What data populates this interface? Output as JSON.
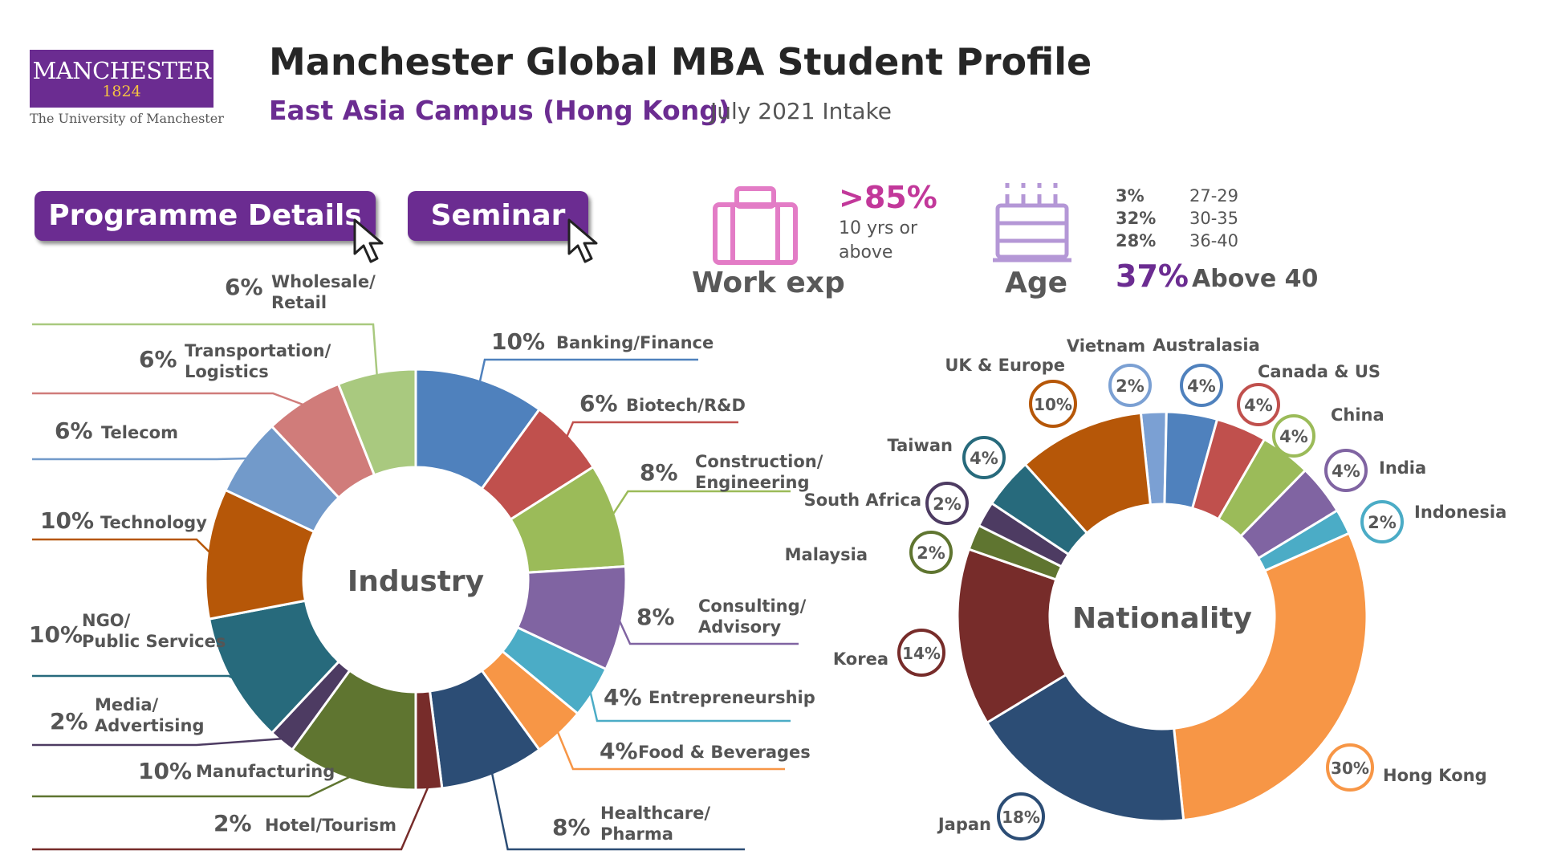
{
  "logo": {
    "word": "MANCHESTER",
    "year": "1824",
    "subtext": "The University of Manchester"
  },
  "header": {
    "title": "Manchester Global MBA Student Profile",
    "subtitle": "East Asia Campus (Hong Kong)",
    "intake": "July 2021 Intake"
  },
  "buttons": {
    "programme": "Programme Details",
    "seminar": "Seminar"
  },
  "work_exp": {
    "value": ">85%",
    "desc_line1": "10 yrs or",
    "desc_line2": "above",
    "label": "Work exp"
  },
  "age": {
    "label": "Age",
    "rows": [
      {
        "pct": "3%",
        "range": "27-29"
      },
      {
        "pct": "32%",
        "range": "30-35"
      },
      {
        "pct": "28%",
        "range": "36-40"
      }
    ],
    "highlight_pct": "37%",
    "highlight_label": "Above 40"
  },
  "colors": {
    "brand_purple": "#6b2c91",
    "accent_pink": "#c2389a",
    "logo_gold": "#f5c242"
  },
  "chart_data": [
    {
      "type": "pie",
      "title": "Industry",
      "categories": [
        "Banking/Finance",
        "Biotech/R&D",
        "Construction/ Engineering",
        "Consulting/ Advisory",
        "Entrepreneurship",
        "Food & Beverages",
        "Healthcare/ Pharma",
        "Hotel/Tourism",
        "Manufacturing",
        "Media/ Advertising",
        "NGO/ Public Services",
        "Technology",
        "Telecom",
        "Transportation/ Logistics",
        "Wholesale/ Retail"
      ],
      "values": [
        10,
        6,
        8,
        8,
        4,
        4,
        8,
        2,
        10,
        2,
        10,
        10,
        6,
        6,
        6
      ],
      "labels": [
        "10%",
        "6%",
        "8%",
        "8%",
        "4%",
        "4%",
        "8%",
        "2%",
        "10%",
        "2%",
        "10%",
        "10%",
        "6%",
        "6%",
        "6%"
      ],
      "colors": [
        "#4f81bd",
        "#c0504d",
        "#9bbb59",
        "#8064a2",
        "#4bacc6",
        "#f79646",
        "#2c4d75",
        "#772c2a",
        "#5f7530",
        "#4d3b62",
        "#276a7c",
        "#b65708",
        "#729aca",
        "#d07c7a",
        "#a9c97f"
      ]
    },
    {
      "type": "pie",
      "title": "Nationality",
      "categories": [
        "Vietnam",
        "Australasia",
        "Canada & US",
        "China",
        "India",
        "Indonesia",
        "Hong Kong",
        "Japan",
        "Korea",
        "Malaysia",
        "South Africa",
        "Taiwan",
        "UK & Europe"
      ],
      "values": [
        2,
        4,
        4,
        4,
        4,
        2,
        30,
        18,
        14,
        2,
        2,
        4,
        10
      ],
      "labels": [
        "2%",
        "4%",
        "4%",
        "4%",
        "4%",
        "2%",
        "30%",
        "18%",
        "14%",
        "2%",
        "2%",
        "4%",
        "10%"
      ],
      "colors": [
        "#7ba0d3",
        "#4f81bd",
        "#c0504d",
        "#9bbb59",
        "#8064a2",
        "#4bacc6",
        "#f79646",
        "#2c4d75",
        "#772c2a",
        "#5f7530",
        "#4d3b62",
        "#276a7c",
        "#b65708"
      ]
    }
  ]
}
